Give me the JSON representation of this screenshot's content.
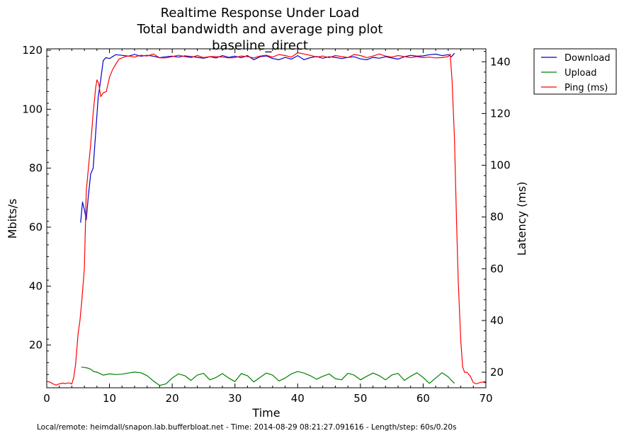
{
  "chart_data": {
    "type": "line",
    "title_lines": [
      "Realtime Response Under Load",
      "Total bandwidth and average ping plot",
      "baseline_direct"
    ],
    "xlabel": "Time",
    "ylabel": "Mbits/s",
    "y2label": "Latency (ms)",
    "xlim": [
      0,
      70
    ],
    "ylim": [
      5.5,
      120.5
    ],
    "y2lim": [
      14,
      145
    ],
    "x_ticks": [
      "0",
      "10",
      "20",
      "30",
      "40",
      "50",
      "60",
      "70"
    ],
    "y_ticks": [
      "20",
      "40",
      "60",
      "80",
      "100",
      "120"
    ],
    "y2_ticks": [
      "20",
      "40",
      "60",
      "80",
      "100",
      "120",
      "140"
    ],
    "legend_position": "outside-top-right",
    "grid": false,
    "footer": "Local/remote: heimdall/snapon.lab.bufferbloat.net - Time: 2014-08-29 08:21:27.091616 - Length/step: 60s/0.20s",
    "series": [
      {
        "name": "Download",
        "axis": "left",
        "color": "#0000cc",
        "x": [
          5.4,
          5.7,
          6.0,
          6.3,
          6.6,
          7.0,
          7.4,
          7.8,
          8.2,
          8.6,
          9.0,
          9.4,
          10.0,
          11.0,
          12.0,
          13.0,
          14.0,
          15.0,
          16.0,
          17.0,
          18.0,
          19.0,
          20.0,
          21.0,
          22.0,
          23.0,
          24.0,
          25.0,
          26.0,
          27.0,
          28.0,
          29.0,
          30.0,
          31.0,
          32.0,
          33.0,
          34.0,
          35.0,
          36.0,
          37.0,
          38.0,
          39.0,
          40.0,
          41.0,
          42.0,
          43.0,
          44.0,
          45.0,
          46.0,
          47.0,
          48.0,
          49.0,
          50.0,
          51.0,
          52.0,
          53.0,
          54.0,
          55.0,
          56.0,
          57.0,
          58.0,
          59.0,
          60.0,
          61.0,
          62.0,
          63.0,
          64.0,
          64.5,
          65.0
        ],
        "values": [
          61.5,
          68.5,
          66,
          62.5,
          70,
          78,
          80,
          92,
          104,
          110,
          116.5,
          117.5,
          117.2,
          118.5,
          118.3,
          118.0,
          118.6,
          118.0,
          118.3,
          118.0,
          117.5,
          117.8,
          118.0,
          117.7,
          118.1,
          117.9,
          117.6,
          117.3,
          117.8,
          117.4,
          118.2,
          117.6,
          118.0,
          117.5,
          118.2,
          116.8,
          117.8,
          118.1,
          117.2,
          116.8,
          117.6,
          117.0,
          118.2,
          116.8,
          117.5,
          117.9,
          117.3,
          117.8,
          117.6,
          117.2,
          117.6,
          117.8,
          117.1,
          116.8,
          117.6,
          117.3,
          117.8,
          117.4,
          117.0,
          117.8,
          118.3,
          118.0,
          118.1,
          118.5,
          118.7,
          118.2,
          118.5,
          117.8,
          119.0
        ]
      },
      {
        "name": "Upload",
        "axis": "left",
        "color": "#008000",
        "x": [
          5.5,
          6.0,
          6.5,
          7.0,
          7.5,
          8.0,
          9.0,
          10.0,
          11.0,
          12.0,
          13.0,
          14.0,
          15.0,
          16.0,
          17.0,
          18.0,
          19.0,
          20.0,
          21.0,
          22.0,
          23.0,
          24.0,
          25.0,
          26.0,
          27.0,
          28.0,
          29.0,
          30.0,
          31.0,
          32.0,
          33.0,
          34.0,
          35.0,
          36.0,
          37.0,
          38.0,
          39.0,
          40.0,
          41.0,
          42.0,
          43.0,
          44.0,
          45.0,
          46.0,
          47.0,
          48.0,
          49.0,
          50.0,
          51.0,
          52.0,
          53.0,
          54.0,
          55.0,
          56.0,
          57.0,
          58.0,
          59.0,
          60.0,
          61.0,
          62.0,
          63.0,
          64.0,
          64.5,
          65.0
        ],
        "values": [
          12.5,
          12.4,
          12.2,
          11.8,
          11.0,
          10.8,
          9.8,
          10.2,
          10.0,
          10.1,
          10.5,
          10.8,
          10.6,
          9.6,
          7.8,
          6.3,
          6.8,
          8.8,
          10.2,
          9.6,
          8.0,
          9.8,
          10.4,
          8.2,
          9.0,
          10.3,
          8.8,
          7.6,
          10.3,
          9.6,
          7.5,
          9.0,
          10.5,
          9.8,
          7.8,
          8.8,
          10.2,
          11.0,
          10.5,
          9.6,
          8.4,
          9.4,
          10.2,
          8.6,
          8.2,
          10.4,
          9.8,
          8.2,
          9.4,
          10.5,
          9.6,
          8.2,
          9.8,
          10.4,
          8.0,
          9.4,
          10.6,
          9.0,
          7.0,
          8.8,
          10.6,
          9.2,
          8.0,
          7.0
        ]
      },
      {
        "name": "Ping (ms)",
        "axis": "right",
        "color": "#ff0000",
        "x": [
          0.0,
          0.5,
          1.0,
          1.5,
          2.0,
          2.5,
          3.0,
          3.5,
          4.0,
          4.3,
          4.6,
          5.0,
          5.3,
          5.6,
          6.0,
          6.3,
          6.6,
          7.0,
          7.4,
          7.8,
          8.0,
          8.3,
          8.6,
          9.0,
          9.5,
          10.0,
          10.5,
          11.0,
          11.5,
          12.0,
          12.5,
          13.0,
          14.0,
          15.0,
          16.0,
          17.0,
          18.0,
          19.0,
          20.0,
          21.0,
          22.0,
          23.0,
          24.0,
          25.0,
          26.0,
          27.0,
          28.0,
          29.0,
          30.0,
          31.0,
          32.0,
          33.0,
          34.0,
          35.0,
          36.0,
          37.0,
          38.0,
          39.0,
          40.0,
          41.0,
          42.0,
          43.0,
          44.0,
          45.0,
          46.0,
          47.0,
          48.0,
          49.0,
          50.0,
          51.0,
          52.0,
          53.0,
          54.0,
          55.0,
          56.0,
          57.0,
          58.0,
          59.0,
          60.0,
          61.0,
          62.0,
          63.0,
          64.0,
          64.3,
          64.6,
          65.0,
          65.3,
          65.6,
          66.0,
          66.3,
          66.6,
          67.0,
          67.5,
          68.0,
          68.5,
          69.0,
          69.5,
          70.0
        ],
        "values": [
          16.5,
          16.2,
          15.5,
          15.0,
          15.5,
          15.8,
          15.6,
          15.9,
          15.5,
          18.0,
          23.0,
          35.0,
          40.0,
          48.0,
          60.0,
          90.0,
          98.0,
          108.0,
          120.0,
          130.0,
          133.0,
          131.5,
          126.5,
          128.0,
          128.5,
          134.0,
          137.0,
          139.0,
          141.0,
          141.5,
          142.0,
          142.2,
          141.8,
          142.5,
          142.2,
          143.0,
          141.5,
          141.5,
          142.0,
          142.5,
          142.0,
          141.6,
          142.4,
          141.6,
          142.0,
          142.0,
          141.8,
          141.5,
          141.6,
          142.2,
          142.0,
          141.5,
          142.2,
          142.5,
          141.8,
          142.8,
          142.4,
          141.8,
          143.5,
          143.0,
          142.5,
          141.8,
          142.2,
          141.6,
          142.4,
          142.0,
          141.6,
          142.8,
          142.4,
          141.6,
          142.2,
          143.0,
          142.2,
          141.8,
          142.4,
          142.0,
          141.6,
          142.0,
          141.6,
          141.8,
          141.5,
          141.6,
          142.0,
          143.0,
          133.0,
          110.0,
          80.0,
          55.0,
          32.0,
          22.0,
          20.0,
          20.0,
          18.5,
          16.0,
          15.5,
          16.0,
          16.2,
          16.5
        ]
      }
    ]
  }
}
